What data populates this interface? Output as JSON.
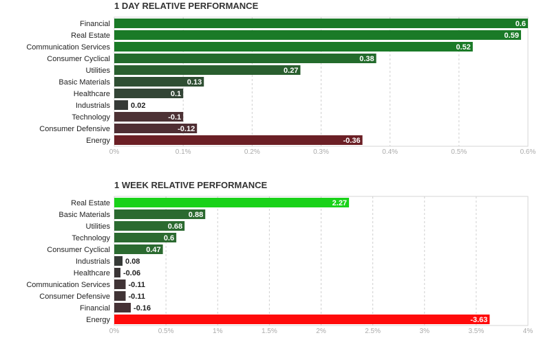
{
  "chart_data": [
    {
      "type": "bar",
      "orientation": "horizontal",
      "title": "1 DAY RELATIVE PERFORMANCE",
      "categories": [
        "Financial",
        "Real Estate",
        "Communication Services",
        "Consumer Cyclical",
        "Utilities",
        "Basic Materials",
        "Healthcare",
        "Industrials",
        "Technology",
        "Consumer Defensive",
        "Energy"
      ],
      "values": [
        0.6,
        0.59,
        0.52,
        0.38,
        0.27,
        0.13,
        0.1,
        0.02,
        -0.1,
        -0.12,
        -0.36
      ],
      "value_labels": [
        "0.6",
        "0.59",
        "0.52",
        "0.38",
        "0.27",
        "0.13",
        "0.1",
        "0.02",
        "-0.1",
        "-0.12",
        "-0.36"
      ],
      "bar_colors": [
        "#1a7a27",
        "#1a7a27",
        "#1a7a27",
        "#236b2c",
        "#2a5f2f",
        "#2f4f33",
        "#334536",
        "#363a37",
        "#4d3235",
        "#4f2e33",
        "#6b1f25"
      ],
      "xlim": [
        0,
        0.6
      ],
      "xticks": [
        "0%",
        "0.1%",
        "0.2%",
        "0.3%",
        "0.4%",
        "0.5%",
        "0.6%"
      ],
      "grid": true
    },
    {
      "type": "bar",
      "orientation": "horizontal",
      "title": "1 WEEK RELATIVE PERFORMANCE",
      "categories": [
        "Real Estate",
        "Basic Materials",
        "Utilities",
        "Technology",
        "Consumer Cyclical",
        "Industrials",
        "Healthcare",
        "Communication Services",
        "Consumer Defensive",
        "Financial",
        "Energy"
      ],
      "values": [
        2.27,
        0.88,
        0.68,
        0.6,
        0.47,
        0.08,
        -0.06,
        -0.11,
        -0.11,
        -0.16,
        -3.63
      ],
      "value_labels": [
        "2.27",
        "0.88",
        "0.68",
        "0.6",
        "0.47",
        "0.08",
        "-0.06",
        "-0.11",
        "-0.11",
        "-0.16",
        "-3.63"
      ],
      "bar_colors": [
        "#19d219",
        "#2b6a30",
        "#2b6a30",
        "#2b6a30",
        "#2b6a30",
        "#363a37",
        "#3a3536",
        "#403335",
        "#403335",
        "#463236",
        "#ff0a0a"
      ],
      "xlim": [
        0,
        4
      ],
      "xticks": [
        "0%",
        "0.5%",
        "1%",
        "1.5%",
        "2%",
        "2.5%",
        "3%",
        "3.5%",
        "4%"
      ],
      "grid": true
    }
  ]
}
